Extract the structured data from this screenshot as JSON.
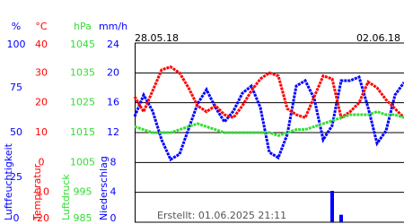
{
  "chart_data": {
    "type": "line",
    "start_date": "28.05.18",
    "end_date": "02.06.18",
    "footer": "Erstellt: 01.06.2025 21:11",
    "grid": true,
    "series": [
      {
        "name": "Luftfeuchtigkeit",
        "unit": "%",
        "type": "line",
        "color": "#0000ff",
        "ylim": [
          0,
          100
        ],
        "yticks": [
          0,
          25,
          50,
          75,
          100
        ],
        "values": [
          59,
          71,
          62,
          46,
          35,
          38,
          52,
          66,
          74,
          64,
          56,
          62,
          72,
          76,
          64,
          39,
          36,
          49,
          76,
          79,
          69,
          46,
          54,
          79,
          79,
          81,
          64,
          44,
          51,
          71,
          78
        ]
      },
      {
        "name": "Temperatur",
        "unit": "°C",
        "type": "line",
        "color": "#ff0000",
        "ylim": [
          -20,
          40
        ],
        "yticks": [
          -20,
          -10,
          0,
          10,
          20,
          30,
          40
        ],
        "values": [
          22,
          17,
          24,
          31,
          32,
          30,
          25,
          19,
          17,
          19,
          16,
          15,
          19,
          24,
          28,
          30,
          29,
          18,
          16,
          15,
          22,
          29,
          28,
          15,
          17,
          20,
          27,
          25,
          21,
          18,
          15
        ]
      },
      {
        "name": "Luftdruck",
        "unit": "hPa",
        "type": "line",
        "color": "#33dd33",
        "ylim": [
          985,
          1045
        ],
        "yticks": [
          985,
          995,
          1005,
          1015,
          1025,
          1035,
          1045
        ],
        "values": [
          1017,
          1016,
          1015,
          1015,
          1015,
          1016,
          1017,
          1018,
          1017,
          1016,
          1015,
          1015,
          1015,
          1015,
          1015,
          1015,
          1014,
          1015,
          1016,
          1016,
          1017,
          1018,
          1019,
          1020,
          1021,
          1021,
          1021,
          1022,
          1021,
          1021,
          1020
        ]
      },
      {
        "name": "Niederschlag",
        "unit": "mm/h",
        "type": "bar",
        "color": "#0000ff",
        "ylim": [
          0,
          24
        ],
        "yticks": [
          0,
          4,
          8,
          12,
          16,
          20,
          24
        ],
        "values": [
          0,
          0,
          0,
          0,
          0,
          0,
          0,
          0,
          0,
          0,
          0,
          0,
          0,
          0,
          0,
          0,
          0,
          0,
          0,
          0,
          0,
          0,
          4.2,
          1,
          0,
          0,
          0,
          0,
          0,
          0,
          0
        ]
      }
    ]
  }
}
